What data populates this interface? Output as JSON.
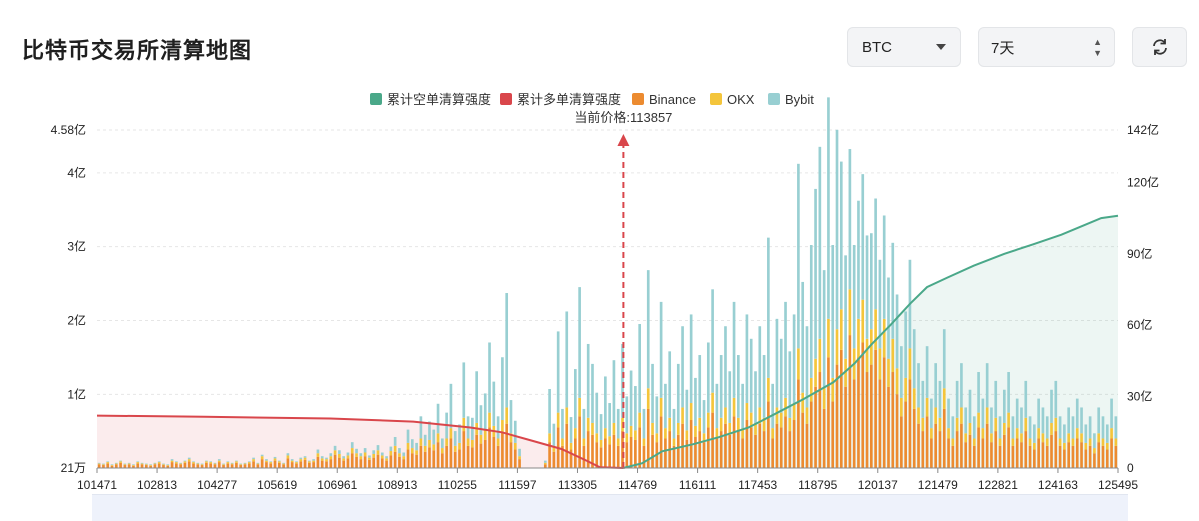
{
  "header": {
    "title": "比特币交易所清算地图",
    "coin_select": "BTC",
    "range_select": "7天"
  },
  "chart_data": {
    "type": "bar",
    "title": "",
    "price_marker_label": "当前价格:113857",
    "current_price": 113857,
    "legend": [
      {
        "name": "累计空单清算强度",
        "color": "#4aa889"
      },
      {
        "name": "累计多单清算强度",
        "color": "#d9464b"
      },
      {
        "name": "Binance",
        "color": "#ec8b30"
      },
      {
        "name": "OKX",
        "color": "#f4c53b"
      },
      {
        "name": "Bybit",
        "color": "#98cfd2"
      }
    ],
    "x_tick_labels": [
      "101471",
      "102813",
      "104277",
      "105619",
      "106961",
      "108913",
      "110255",
      "111597",
      "113305",
      "114769",
      "116111",
      "117453",
      "118795",
      "120137",
      "121479",
      "122821",
      "124163",
      "125495"
    ],
    "x_range": [
      101471,
      125495
    ],
    "y_left_ticks": [
      {
        "label": "21万",
        "value": 0.0021
      },
      {
        "label": "1亿",
        "value": 1
      },
      {
        "label": "2亿",
        "value": 2
      },
      {
        "label": "3亿",
        "value": 3
      },
      {
        "label": "4亿",
        "value": 4
      },
      {
        "label": "4.58亿",
        "value": 4.58
      }
    ],
    "y_left_range": [
      0.0021,
      4.58
    ],
    "y_left_unit": "亿",
    "y_right_ticks": [
      {
        "label": "0",
        "value": 0
      },
      {
        "label": "30亿",
        "value": 30
      },
      {
        "label": "60亿",
        "value": 60
      },
      {
        "label": "90亿",
        "value": 90
      },
      {
        "label": "120亿",
        "value": 120
      },
      {
        "label": "142亿",
        "value": 142
      }
    ],
    "y_right_range": [
      0,
      142
    ],
    "y_right_unit": "亿",
    "series": [
      {
        "name": "Binance",
        "values": [
          0.05,
          0.04,
          0.06,
          0.03,
          0.05,
          0.07,
          0.04,
          0.05,
          0.03,
          0.06,
          0.05,
          0.04,
          0.03,
          0.05,
          0.06,
          0.04,
          0.03,
          0.08,
          0.06,
          0.05,
          0.07,
          0.09,
          0.06,
          0.05,
          0.04,
          0.07,
          0.06,
          0.05,
          0.08,
          0.04,
          0.06,
          0.05,
          0.07,
          0.04,
          0.05,
          0.06,
          0.09,
          0.05,
          0.12,
          0.08,
          0.06,
          0.1,
          0.07,
          0.05,
          0.13,
          0.08,
          0.06,
          0.09,
          0.11,
          0.07,
          0.08,
          0.15,
          0.1,
          0.09,
          0.12,
          0.18,
          0.14,
          0.1,
          0.13,
          0.2,
          0.15,
          0.12,
          0.16,
          0.11,
          0.14,
          0.18,
          0.13,
          0.1,
          0.17,
          0.22,
          0.15,
          0.12,
          0.25,
          0.2,
          0.18,
          0.3,
          0.22,
          0.28,
          0.24,
          0.35,
          0.2,
          0.3,
          0.4,
          0.22,
          0.25,
          0.5,
          0.3,
          0.28,
          0.45,
          0.33,
          0.38,
          0.55,
          0.42,
          0.3,
          0.48,
          0.6,
          0.35,
          0.25,
          0.12,
          0.0,
          0.0,
          0.0,
          0.0,
          0.0,
          0.05,
          0.35,
          0.22,
          0.55,
          0.3,
          0.6,
          0.25,
          0.4,
          0.7,
          0.3,
          0.5,
          0.45,
          0.35,
          0.28,
          0.4,
          0.32,
          0.45,
          0.3,
          0.5,
          0.35,
          0.42,
          0.38,
          0.55,
          0.3,
          0.8,
          0.45,
          0.35,
          0.7,
          0.4,
          0.5,
          0.3,
          0.45,
          0.6,
          0.38,
          0.65,
          0.42,
          0.5,
          0.35,
          0.55,
          0.75,
          0.4,
          0.5,
          0.6,
          0.45,
          0.7,
          0.5,
          0.4,
          0.65,
          0.55,
          0.45,
          0.6,
          0.5,
          0.9,
          0.4,
          0.6,
          0.55,
          0.7,
          0.5,
          0.65,
          1.2,
          0.75,
          0.6,
          0.9,
          1.1,
          1.3,
          0.8,
          1.5,
          0.9,
          1.4,
          1.6,
          1.1,
          1.8,
          1.2,
          1.5,
          1.7,
          1.3,
          1.4,
          1.6,
          1.2,
          1.5,
          1.1,
          1.3,
          1.0,
          0.7,
          0.9,
          1.2,
          0.8,
          0.6,
          0.5,
          0.7,
          0.4,
          0.6,
          0.5,
          0.8,
          0.4,
          0.3,
          0.5,
          0.6,
          0.35,
          0.45,
          0.3,
          0.55,
          0.4,
          0.6,
          0.35,
          0.5,
          0.3,
          0.45,
          0.55,
          0.3,
          0.4,
          0.35,
          0.5,
          0.3,
          0.25,
          0.4,
          0.35,
          0.3,
          0.45,
          0.5,
          0.3,
          0.25,
          0.35,
          0.3,
          0.4,
          0.35,
          0.25,
          0.3,
          0.2,
          0.35,
          0.3,
          0.25,
          0.4,
          0.3
        ]
      },
      {
        "name": "OKX",
        "values": [
          0.01,
          0.01,
          0.02,
          0.01,
          0.01,
          0.02,
          0.01,
          0.01,
          0.01,
          0.02,
          0.01,
          0.01,
          0.01,
          0.01,
          0.02,
          0.01,
          0.01,
          0.02,
          0.02,
          0.01,
          0.02,
          0.03,
          0.02,
          0.01,
          0.01,
          0.02,
          0.02,
          0.01,
          0.02,
          0.01,
          0.02,
          0.01,
          0.02,
          0.01,
          0.01,
          0.02,
          0.03,
          0.01,
          0.04,
          0.02,
          0.02,
          0.03,
          0.02,
          0.01,
          0.04,
          0.02,
          0.02,
          0.03,
          0.03,
          0.02,
          0.02,
          0.05,
          0.03,
          0.03,
          0.04,
          0.06,
          0.05,
          0.03,
          0.04,
          0.07,
          0.05,
          0.04,
          0.05,
          0.03,
          0.05,
          0.06,
          0.04,
          0.03,
          0.06,
          0.08,
          0.05,
          0.04,
          0.09,
          0.07,
          0.06,
          0.1,
          0.08,
          0.1,
          0.08,
          0.12,
          0.07,
          0.1,
          0.14,
          0.08,
          0.09,
          0.18,
          0.1,
          0.1,
          0.16,
          0.12,
          0.13,
          0.2,
          0.15,
          0.1,
          0.17,
          0.22,
          0.12,
          0.09,
          0.04,
          0.0,
          0.0,
          0.0,
          0.0,
          0.0,
          0.02,
          0.12,
          0.08,
          0.2,
          0.1,
          0.22,
          0.09,
          0.14,
          0.25,
          0.1,
          0.18,
          0.16,
          0.12,
          0.1,
          0.14,
          0.11,
          0.16,
          0.1,
          0.18,
          0.12,
          0.15,
          0.13,
          0.2,
          0.1,
          0.28,
          0.16,
          0.12,
          0.25,
          0.14,
          0.18,
          0.1,
          0.16,
          0.22,
          0.13,
          0.23,
          0.15,
          0.18,
          0.12,
          0.2,
          0.27,
          0.14,
          0.18,
          0.22,
          0.16,
          0.25,
          0.18,
          0.14,
          0.23,
          0.2,
          0.16,
          0.22,
          0.18,
          0.32,
          0.14,
          0.22,
          0.2,
          0.25,
          0.18,
          0.23,
          0.42,
          0.27,
          0.22,
          0.32,
          0.38,
          0.45,
          0.28,
          0.52,
          0.32,
          0.48,
          0.55,
          0.38,
          0.62,
          0.42,
          0.52,
          0.58,
          0.45,
          0.48,
          0.55,
          0.42,
          0.52,
          0.38,
          0.45,
          0.35,
          0.25,
          0.32,
          0.42,
          0.28,
          0.22,
          0.18,
          0.25,
          0.14,
          0.22,
          0.18,
          0.28,
          0.14,
          0.1,
          0.18,
          0.22,
          0.12,
          0.16,
          0.1,
          0.2,
          0.14,
          0.22,
          0.12,
          0.18,
          0.1,
          0.16,
          0.2,
          0.1,
          0.14,
          0.12,
          0.18,
          0.1,
          0.09,
          0.14,
          0.12,
          0.1,
          0.16,
          0.18,
          0.1,
          0.09,
          0.12,
          0.1,
          0.14,
          0.12,
          0.09,
          0.1,
          0.07,
          0.12,
          0.1,
          0.09,
          0.14,
          0.1
        ]
      },
      {
        "name": "Bybit",
        "values": [
          0.01,
          0.01,
          0.01,
          0.01,
          0.01,
          0.01,
          0.01,
          0.01,
          0.01,
          0.01,
          0.01,
          0.01,
          0.01,
          0.01,
          0.01,
          0.01,
          0.01,
          0.02,
          0.01,
          0.01,
          0.01,
          0.02,
          0.01,
          0.01,
          0.01,
          0.01,
          0.01,
          0.01,
          0.02,
          0.01,
          0.01,
          0.01,
          0.01,
          0.01,
          0.01,
          0.01,
          0.02,
          0.01,
          0.02,
          0.02,
          0.01,
          0.02,
          0.01,
          0.01,
          0.03,
          0.02,
          0.01,
          0.02,
          0.02,
          0.01,
          0.02,
          0.05,
          0.03,
          0.02,
          0.04,
          0.06,
          0.05,
          0.03,
          0.04,
          0.08,
          0.06,
          0.04,
          0.06,
          0.03,
          0.05,
          0.07,
          0.04,
          0.03,
          0.06,
          0.12,
          0.07,
          0.05,
          0.18,
          0.12,
          0.1,
          0.3,
          0.15,
          0.25,
          0.2,
          0.4,
          0.13,
          0.35,
          0.6,
          0.2,
          0.25,
          0.75,
          0.3,
          0.3,
          0.7,
          0.4,
          0.5,
          0.95,
          0.6,
          0.3,
          0.85,
          1.55,
          0.45,
          0.3,
          0.1,
          0.0,
          0.0,
          0.0,
          0.0,
          0.0,
          0.03,
          0.6,
          0.3,
          1.1,
          0.4,
          1.3,
          0.35,
          0.8,
          1.5,
          0.4,
          1.0,
          0.8,
          0.55,
          0.35,
          0.7,
          0.45,
          0.85,
          0.4,
          1.0,
          0.5,
          0.75,
          0.6,
          1.2,
          0.4,
          1.6,
          0.8,
          0.5,
          1.3,
          0.6,
          0.9,
          0.4,
          0.8,
          1.1,
          0.55,
          1.2,
          0.65,
          0.85,
          0.45,
          0.95,
          1.4,
          0.6,
          0.85,
          1.1,
          0.7,
          1.3,
          0.85,
          0.6,
          1.2,
          1.0,
          0.7,
          1.1,
          0.85,
          1.9,
          0.6,
          1.2,
          1.0,
          1.3,
          0.9,
          1.2,
          2.5,
          1.5,
          1.1,
          1.8,
          2.3,
          2.6,
          1.6,
          3.0,
          1.8,
          2.7,
          2.0,
          1.4,
          1.9,
          1.4,
          1.6,
          1.7,
          1.4,
          1.3,
          1.5,
          1.2,
          1.4,
          1.1,
          1.3,
          1.0,
          0.7,
          0.9,
          1.2,
          0.8,
          0.6,
          0.5,
          0.7,
          0.4,
          0.6,
          0.5,
          0.8,
          0.4,
          0.3,
          0.5,
          0.6,
          0.35,
          0.45,
          0.3,
          0.55,
          0.4,
          0.6,
          0.35,
          0.5,
          0.3,
          0.45,
          0.55,
          0.3,
          0.4,
          0.35,
          0.5,
          0.3,
          0.25,
          0.4,
          0.35,
          0.3,
          0.45,
          0.5,
          0.3,
          0.25,
          0.35,
          0.3,
          0.4,
          0.35,
          0.25,
          0.3,
          0.2,
          0.35,
          0.3,
          0.25,
          0.4,
          0.3
        ]
      },
      {
        "name": "累计多单清算强度",
        "x": [
          101471,
          104000,
          106961,
          108913,
          110255,
          111000,
          111597,
          112400,
          113000,
          113305,
          113857
        ],
        "values": [
          22,
          21.5,
          20.8,
          19.5,
          17,
          15,
          12,
          8,
          3,
          0.3,
          0
        ]
      },
      {
        "name": "累计空单清算强度",
        "x": [
          113857,
          114300,
          114769,
          115500,
          116111,
          116800,
          117453,
          118100,
          118795,
          119300,
          119700,
          120137,
          120600,
          121000,
          121479,
          122100,
          122821,
          123500,
          124163,
          124700,
          125100,
          125495
        ],
        "values": [
          0,
          2,
          7,
          10,
          13,
          17,
          23,
          29,
          36,
          44,
          52,
          60,
          69,
          76,
          80,
          85,
          90,
          94,
          98,
          102,
          105,
          106
        ]
      }
    ]
  }
}
